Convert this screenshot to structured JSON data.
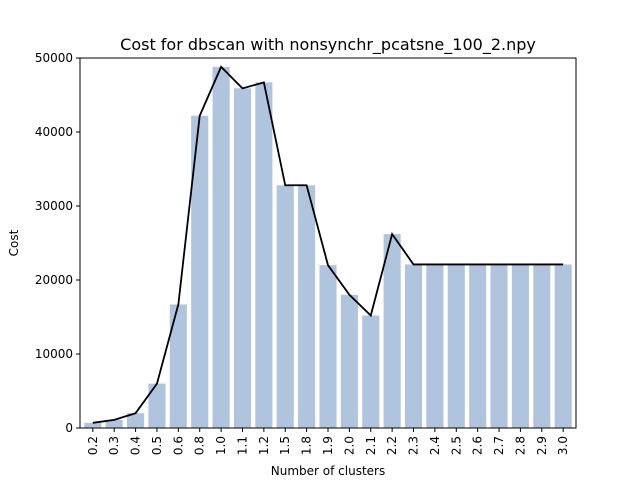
{
  "chart_data": {
    "type": "bar",
    "title": "Cost for dbscan with nonsynchr_pcatsne_100_2.npy",
    "xlabel": "Number of clusters",
    "ylabel": "Cost",
    "ylim": [
      0,
      50000
    ],
    "yticks": [
      0,
      10000,
      20000,
      30000,
      40000,
      50000
    ],
    "categories": [
      "0.2",
      "0.3",
      "0.4",
      "0.5",
      "0.6",
      "0.8",
      "1.0",
      "1.1",
      "1.2",
      "1.5",
      "1.8",
      "1.9",
      "2.0",
      "2.1",
      "2.2",
      "2.3",
      "2.4",
      "2.5",
      "2.6",
      "2.7",
      "2.8",
      "2.9",
      "3.0"
    ],
    "values": [
      700,
      1100,
      2000,
      6000,
      16700,
      42200,
      48800,
      45900,
      46700,
      32800,
      32800,
      22000,
      18000,
      15200,
      26200,
      22100,
      22100,
      22100,
      22100,
      22100,
      22100,
      22100,
      22100
    ],
    "bar_color": "#b0c4de",
    "line_color": "#000000",
    "grid": false,
    "legend": "none"
  }
}
